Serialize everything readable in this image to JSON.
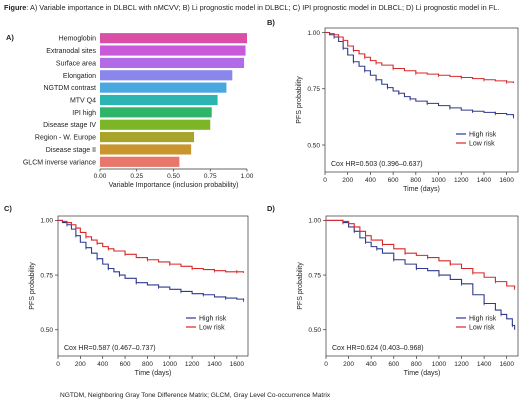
{
  "figure": {
    "caption_label": "Figure",
    "caption_text": ": A) Variable importance in DLBCL with nMCVV; B) Li prognostic model in DLBCL; C) IPI prognostic model in DLBCL; D) Li prognostic model in FL.",
    "footnote": "NGTDM, Neighboring Gray Tone Difference Matrix; GLCM, Gray Level Co-occurrence Matrix"
  },
  "colors": {
    "high_risk": "#2f3a8f",
    "low_risk": "#d62828",
    "axis": "#333333"
  },
  "chart_data": [
    {
      "panel": "A)",
      "type": "bar",
      "orientation": "horizontal",
      "xlabel": "Variable Importance (inclusion probability)",
      "xlim": [
        0,
        1
      ],
      "xticks": [
        "0.00",
        "0.25",
        "0.50",
        "0.75",
        "1.00"
      ],
      "categories": [
        "Hemoglobin",
        "Extranodal sites",
        "Surface area",
        "Elongation",
        "NGTDM contrast",
        "MTV Q4",
        "IPI high",
        "Disease stage IV",
        "Region - W. Europe",
        "Disease stage II",
        "GLCM inverse variance"
      ],
      "values": [
        1.0,
        0.99,
        0.98,
        0.9,
        0.86,
        0.8,
        0.76,
        0.75,
        0.64,
        0.62,
        0.54
      ],
      "bar_colors": [
        "#d94fa6",
        "#c85ad9",
        "#b26ae6",
        "#8a86ec",
        "#4aa8e0",
        "#2ab5b0",
        "#2fb56a",
        "#7cb526",
        "#a8a42a",
        "#c9952e",
        "#e8766a"
      ]
    },
    {
      "panel": "B)",
      "type": "line",
      "xlabel": "Time (days)",
      "ylabel": "PFS probability",
      "xlim": [
        0,
        1700
      ],
      "ylim": [
        0.38,
        1.02
      ],
      "xticks": [
        "0",
        "200",
        "400",
        "600",
        "800",
        "1000",
        "1200",
        "1400",
        "1600"
      ],
      "yticks": [
        "0.50",
        "0.75",
        "1.00"
      ],
      "annotation": "Cox HR=0.503 (0.396–0.637)",
      "legend": "bottom-right",
      "series": [
        {
          "name": "High risk",
          "color": "#2f3a8f",
          "x": [
            0,
            40,
            80,
            120,
            160,
            200,
            250,
            300,
            350,
            400,
            450,
            500,
            550,
            600,
            650,
            700,
            750,
            800,
            900,
            1000,
            1100,
            1200,
            1300,
            1400,
            1500,
            1600,
            1660
          ],
          "y": [
            1.0,
            0.99,
            0.98,
            0.96,
            0.93,
            0.9,
            0.87,
            0.85,
            0.83,
            0.81,
            0.79,
            0.77,
            0.755,
            0.74,
            0.73,
            0.715,
            0.705,
            0.695,
            0.685,
            0.675,
            0.665,
            0.655,
            0.65,
            0.645,
            0.64,
            0.635,
            0.625
          ]
        },
        {
          "name": "Low risk",
          "color": "#d62828",
          "x": [
            0,
            40,
            80,
            120,
            160,
            200,
            250,
            300,
            350,
            400,
            450,
            500,
            600,
            700,
            800,
            900,
            1000,
            1100,
            1200,
            1300,
            1400,
            1500,
            1600,
            1660
          ],
          "y": [
            1.0,
            0.995,
            0.99,
            0.98,
            0.965,
            0.94,
            0.92,
            0.905,
            0.89,
            0.875,
            0.865,
            0.855,
            0.84,
            0.83,
            0.82,
            0.815,
            0.81,
            0.805,
            0.8,
            0.795,
            0.79,
            0.785,
            0.78,
            0.775
          ]
        }
      ]
    },
    {
      "panel": "C)",
      "type": "line",
      "xlabel": "Time (days)",
      "ylabel": "PFS probability",
      "xlim": [
        0,
        1700
      ],
      "ylim": [
        0.38,
        1.02
      ],
      "xticks": [
        "0",
        "200",
        "400",
        "600",
        "800",
        "1000",
        "1200",
        "1400",
        "1600"
      ],
      "yticks": [
        "0.50",
        "0.75",
        "1.00"
      ],
      "annotation": "Cox HR=0.587 (0.467–0.737)",
      "legend": "bottom-right",
      "series": [
        {
          "name": "High risk",
          "color": "#2f3a8f",
          "x": [
            0,
            40,
            80,
            120,
            160,
            200,
            250,
            300,
            350,
            400,
            450,
            500,
            550,
            600,
            700,
            800,
            900,
            1000,
            1100,
            1200,
            1300,
            1400,
            1500,
            1600,
            1660
          ],
          "y": [
            1.0,
            0.99,
            0.98,
            0.96,
            0.93,
            0.9,
            0.875,
            0.85,
            0.825,
            0.8,
            0.78,
            0.765,
            0.75,
            0.735,
            0.715,
            0.705,
            0.695,
            0.685,
            0.675,
            0.665,
            0.66,
            0.65,
            0.645,
            0.64,
            0.635
          ]
        },
        {
          "name": "Low risk",
          "color": "#d62828",
          "x": [
            0,
            40,
            80,
            120,
            160,
            200,
            250,
            300,
            350,
            400,
            450,
            500,
            600,
            700,
            800,
            900,
            1000,
            1100,
            1200,
            1300,
            1400,
            1500,
            1600,
            1660
          ],
          "y": [
            1.0,
            0.995,
            0.99,
            0.98,
            0.965,
            0.945,
            0.925,
            0.91,
            0.895,
            0.88,
            0.87,
            0.86,
            0.845,
            0.83,
            0.82,
            0.81,
            0.8,
            0.79,
            0.78,
            0.775,
            0.77,
            0.765,
            0.765,
            0.76
          ]
        }
      ]
    },
    {
      "panel": "D)",
      "type": "line",
      "xlabel": "Time (days)",
      "ylabel": "PFS probability",
      "xlim": [
        0,
        1700
      ],
      "ylim": [
        0.38,
        1.02
      ],
      "xticks": [
        "0",
        "200",
        "400",
        "600",
        "800",
        "1000",
        "1200",
        "1400",
        "1600"
      ],
      "yticks": [
        "0.50",
        "0.75",
        "1.00"
      ],
      "annotation": "Cox HR=0.624 (0.403–0.968)",
      "legend": "bottom-right",
      "series": [
        {
          "name": "High risk",
          "color": "#2f3a8f",
          "x": [
            0,
            100,
            150,
            200,
            250,
            300,
            350,
            400,
            450,
            500,
            600,
            700,
            800,
            900,
            1000,
            1100,
            1200,
            1300,
            1400,
            1500,
            1550,
            1600,
            1650,
            1670
          ],
          "y": [
            1.0,
            1.0,
            0.99,
            0.97,
            0.95,
            0.92,
            0.9,
            0.88,
            0.87,
            0.85,
            0.82,
            0.8,
            0.78,
            0.77,
            0.75,
            0.73,
            0.71,
            0.66,
            0.62,
            0.59,
            0.57,
            0.55,
            0.52,
            0.5
          ]
        },
        {
          "name": "Low risk",
          "color": "#d62828",
          "x": [
            0,
            100,
            150,
            200,
            250,
            300,
            350,
            400,
            500,
            600,
            700,
            800,
            900,
            1000,
            1100,
            1200,
            1300,
            1400,
            1500,
            1600,
            1670
          ],
          "y": [
            1.0,
            1.0,
            0.995,
            0.985,
            0.97,
            0.95,
            0.93,
            0.91,
            0.89,
            0.87,
            0.85,
            0.84,
            0.83,
            0.815,
            0.8,
            0.78,
            0.76,
            0.74,
            0.72,
            0.7,
            0.69
          ]
        }
      ]
    }
  ]
}
